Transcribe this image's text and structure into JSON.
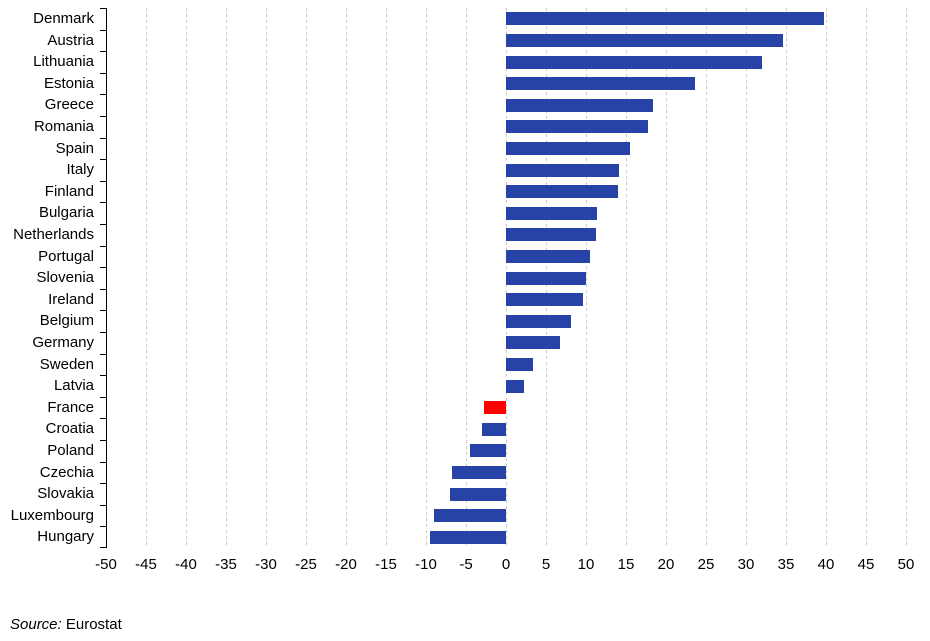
{
  "chart_data": {
    "type": "bar",
    "orientation": "horizontal",
    "title": "",
    "xlabel": "",
    "ylabel": "",
    "xlim": [
      -50,
      50
    ],
    "xticks": [
      -50,
      -45,
      -40,
      -35,
      -30,
      -25,
      -20,
      -15,
      -10,
      -5,
      0,
      5,
      10,
      15,
      20,
      25,
      30,
      35,
      40,
      45,
      50
    ],
    "grid": "vertical-dashed",
    "categories": [
      "Denmark",
      "Austria",
      "Lithuania",
      "Estonia",
      "Greece",
      "Romania",
      "Spain",
      "Italy",
      "Finland",
      "Bulgaria",
      "Netherlands",
      "Portugal",
      "Slovenia",
      "Ireland",
      "Belgium",
      "Germany",
      "Sweden",
      "Latvia",
      "France",
      "Croatia",
      "Poland",
      "Czechia",
      "Slovakia",
      "Luxembourg",
      "Hungary"
    ],
    "values": [
      39.8,
      34.6,
      32.0,
      23.6,
      18.4,
      17.8,
      15.5,
      14.1,
      14.0,
      11.4,
      11.2,
      10.5,
      10.0,
      9.6,
      8.1,
      6.7,
      3.4,
      2.2,
      -2.8,
      -3.0,
      -4.5,
      -6.7,
      -7.0,
      -9.0,
      -9.5
    ],
    "bar_color": "#2743A7",
    "highlight_category": "France",
    "highlight_color": "#FF0000",
    "grid_color": "#c9c9c9",
    "axis_color": "#000000",
    "text_color": "#000000",
    "legend": null
  },
  "source": {
    "prefix": "Source:",
    "text": " Eurostat"
  }
}
